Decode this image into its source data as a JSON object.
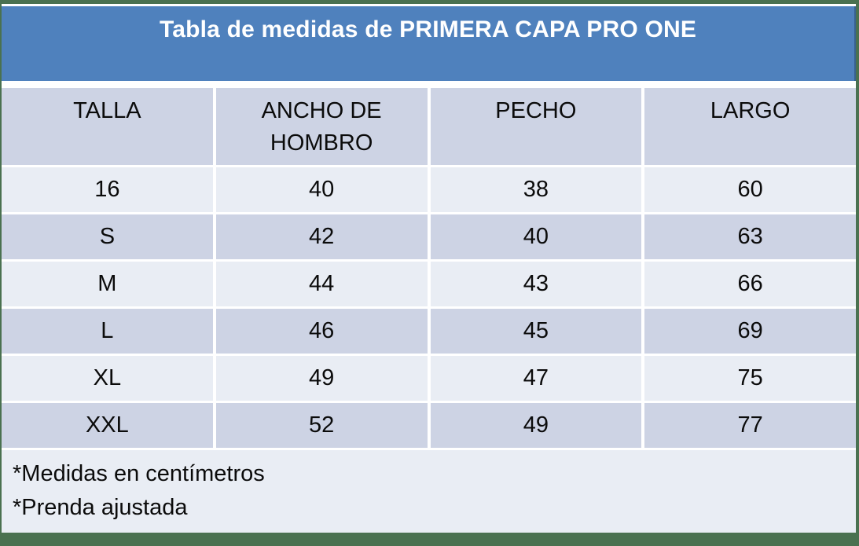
{
  "title": "Tabla de medidas de PRIMERA CAPA PRO ONE",
  "table": {
    "columns": [
      "TALLA",
      "ANCHO DE HOMBRO",
      "PECHO",
      "LARGO"
    ],
    "rows": [
      [
        "16",
        "40",
        "38",
        "60"
      ],
      [
        "S",
        "42",
        "40",
        "63"
      ],
      [
        "M",
        "44",
        "43",
        "66"
      ],
      [
        "L",
        "46",
        "45",
        "69"
      ],
      [
        "XL",
        "49",
        "47",
        "75"
      ],
      [
        "XXL",
        "52",
        "49",
        "77"
      ]
    ],
    "notes": [
      "*Medidas en centímetros",
      "*Prenda ajustada"
    ]
  },
  "colors": {
    "title_bar_blue": "#4f81bd",
    "title_bar_edge": "#38618f",
    "row_dark": "#cdd3e4",
    "row_light": "#e9edf4",
    "frame_green": "#4a7150",
    "title_text": "#ffffff",
    "body_text": "#0b0b0b"
  }
}
